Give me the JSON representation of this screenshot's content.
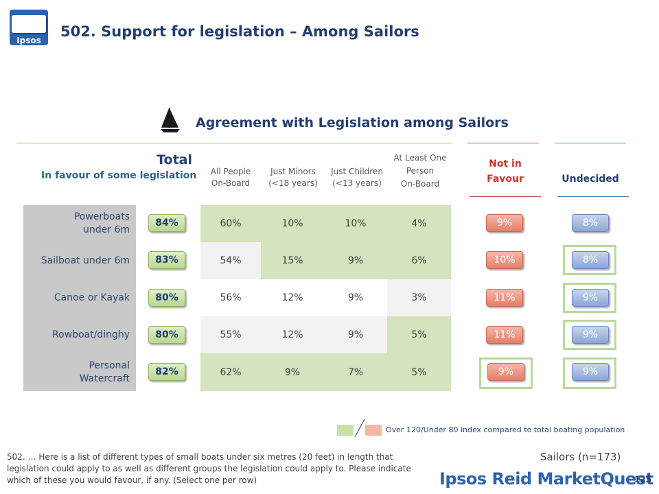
{
  "logo": {
    "text": "Ipsos"
  },
  "page_title": "502. Support for legislation – Among Sailors",
  "chart_title": "Agreement with Legislation among Sailors",
  "total_header": {
    "title": "Total",
    "subtitle": "In favour of some legislation"
  },
  "column_headers": [
    {
      "line1": "All People",
      "line2": "On-Board",
      "line3": ""
    },
    {
      "line1": "Just Minors",
      "line2": "(<18 years)",
      "line3": ""
    },
    {
      "line1": "Just Children",
      "line2": "(<13 years)",
      "line3": ""
    },
    {
      "line1": "At Least One",
      "line2": "Person",
      "line3": "On-Board"
    }
  ],
  "not_in_favour_header": {
    "line1": "Not in",
    "line2": "Favour"
  },
  "undecided_header": "Undecided",
  "rows": [
    {
      "label": "Powerboats under 6m",
      "total": "84%",
      "all": "60%",
      "minors": "10%",
      "children": "10%",
      "atleast": "4%",
      "not_in_favour": "9%",
      "undecided": "8%"
    },
    {
      "label": "Sailboat under 6m",
      "total": "83%",
      "all": "54%",
      "minors": "15%",
      "children": "9%",
      "atleast": "6%",
      "not_in_favour": "10%",
      "undecided": "8%"
    },
    {
      "label": "Canoe or Kayak",
      "total": "80%",
      "all": "56%",
      "minors": "12%",
      "children": "9%",
      "atleast": "3%",
      "not_in_favour": "11%",
      "undecided": "9%"
    },
    {
      "label": "Rowboat/dinghy",
      "total": "80%",
      "all": "55%",
      "minors": "12%",
      "children": "9%",
      "atleast": "5%",
      "not_in_favour": "11%",
      "undecided": "9%"
    },
    {
      "label": "Personal Watercraft",
      "total": "82%",
      "all": "62%",
      "minors": "9%",
      "children": "7%",
      "atleast": "5%",
      "not_in_favour": "9%",
      "undecided": "9%"
    }
  ],
  "legend_text": "Over 120/Under 80 index compared to total boating population",
  "footnote": "502. … Here is a list of different types of small boats under six metres (20 feet) in length that legislation could apply to as well as different groups the legislation could apply to. Please indicate which of these you would favour, if any. (Select one per row)",
  "sample": "Sailors (n=173)",
  "brand": "Ipsos Reid MarketQuest",
  "page_number": "125",
  "colors": {
    "title": "#243e6e",
    "highlight_green": "#d6e3bf",
    "highlight_red": "#f4b7a2",
    "not_in_favour": "#c0392b",
    "brand": "#2d63ad"
  }
}
